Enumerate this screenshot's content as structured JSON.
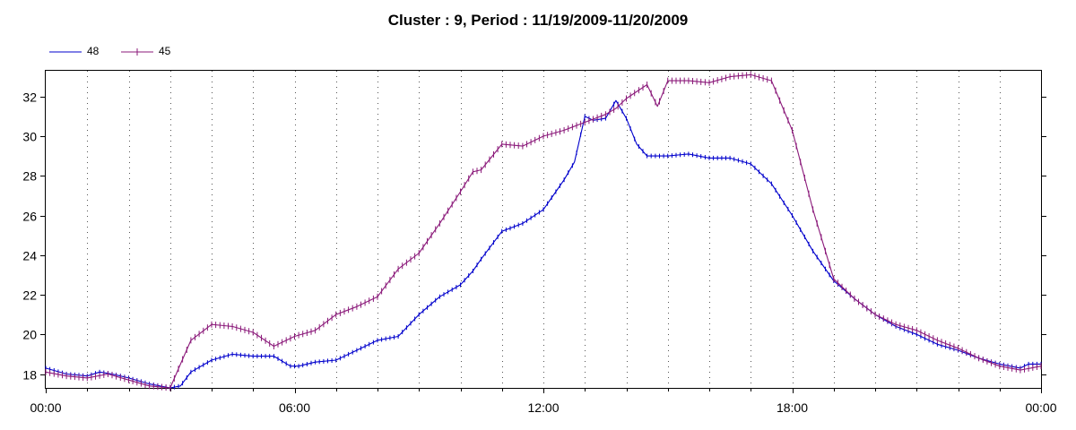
{
  "chart_data": {
    "type": "line",
    "title": "Cluster : 9, Period : 11/19/2009-11/20/2009",
    "xlabel": "",
    "ylabel": "",
    "x_unit": "hours since 00:00 on 11/19/2009",
    "xlim": [
      0,
      24
    ],
    "ylim": [
      17.3,
      33.3
    ],
    "x_ticks": [
      {
        "value": 0,
        "label": "00:00"
      },
      {
        "value": 6,
        "label": "06:00"
      },
      {
        "value": 12,
        "label": "12:00"
      },
      {
        "value": 18,
        "label": "18:00"
      },
      {
        "value": 24,
        "label": "00:00"
      }
    ],
    "y_ticks": [
      18,
      20,
      22,
      24,
      26,
      28,
      30,
      32
    ],
    "grid": "dotted vertical lines every hour",
    "legend_position": "top-left",
    "series": [
      {
        "name": "48",
        "color": "#0000cc",
        "x": [
          0,
          0.5,
          1,
          1.3,
          1.6,
          2,
          2.5,
          3,
          3.25,
          3.5,
          4,
          4.5,
          5,
          5.5,
          5.9,
          6.1,
          6.5,
          7,
          7.5,
          8,
          8.5,
          9,
          9.5,
          10,
          10.3,
          10.5,
          11,
          11.5,
          12,
          12.3,
          12.5,
          12.75,
          13,
          13.2,
          13.5,
          13.75,
          14,
          14.25,
          14.5,
          15,
          15.5,
          16,
          16.5,
          17,
          17.5,
          18,
          18.5,
          19,
          19.5,
          20,
          20.5,
          21,
          21.5,
          22,
          22.5,
          23,
          23.5,
          23.7,
          24
        ],
        "y": [
          18.3,
          18.0,
          17.9,
          18.1,
          18.0,
          17.8,
          17.5,
          17.3,
          17.4,
          18.1,
          18.7,
          19.0,
          18.9,
          18.9,
          18.4,
          18.4,
          18.6,
          18.7,
          19.2,
          19.7,
          19.9,
          21.0,
          21.9,
          22.5,
          23.2,
          23.8,
          25.2,
          25.6,
          26.3,
          27.2,
          27.8,
          28.7,
          31.0,
          30.8,
          30.9,
          31.8,
          30.9,
          29.6,
          29.0,
          29.0,
          29.1,
          28.9,
          28.9,
          28.6,
          27.6,
          26.0,
          24.2,
          22.7,
          21.8,
          21.0,
          20.4,
          20.0,
          19.5,
          19.2,
          18.8,
          18.5,
          18.3,
          18.5,
          18.5
        ]
      },
      {
        "name": "45",
        "color": "#8b1a7a",
        "x": [
          0,
          0.5,
          1,
          1.5,
          2,
          2.5,
          3,
          3.25,
          3.5,
          4,
          4.5,
          5,
          5.5,
          6,
          6.5,
          7,
          7.5,
          8,
          8.5,
          9,
          9.5,
          10,
          10.3,
          10.5,
          11,
          11.5,
          12,
          12.5,
          13,
          13.5,
          13.75,
          14,
          14.5,
          14.75,
          15,
          15.5,
          16,
          16.5,
          17,
          17.5,
          18,
          18.5,
          19,
          19.5,
          20,
          20.5,
          21,
          21.5,
          22,
          22.5,
          23,
          23.5,
          23.75,
          24
        ],
        "y": [
          18.1,
          17.9,
          17.8,
          18.0,
          17.7,
          17.4,
          17.3,
          18.5,
          19.7,
          20.5,
          20.4,
          20.1,
          19.4,
          19.9,
          20.2,
          21.0,
          21.4,
          21.9,
          23.3,
          24.1,
          25.6,
          27.2,
          28.2,
          28.3,
          29.6,
          29.5,
          30.0,
          30.3,
          30.7,
          31.1,
          31.4,
          31.9,
          32.6,
          31.5,
          32.8,
          32.8,
          32.7,
          33.0,
          33.1,
          32.8,
          30.3,
          26.3,
          22.8,
          21.8,
          21.0,
          20.5,
          20.2,
          19.7,
          19.3,
          18.8,
          18.4,
          18.2,
          18.3,
          18.4
        ]
      }
    ]
  }
}
